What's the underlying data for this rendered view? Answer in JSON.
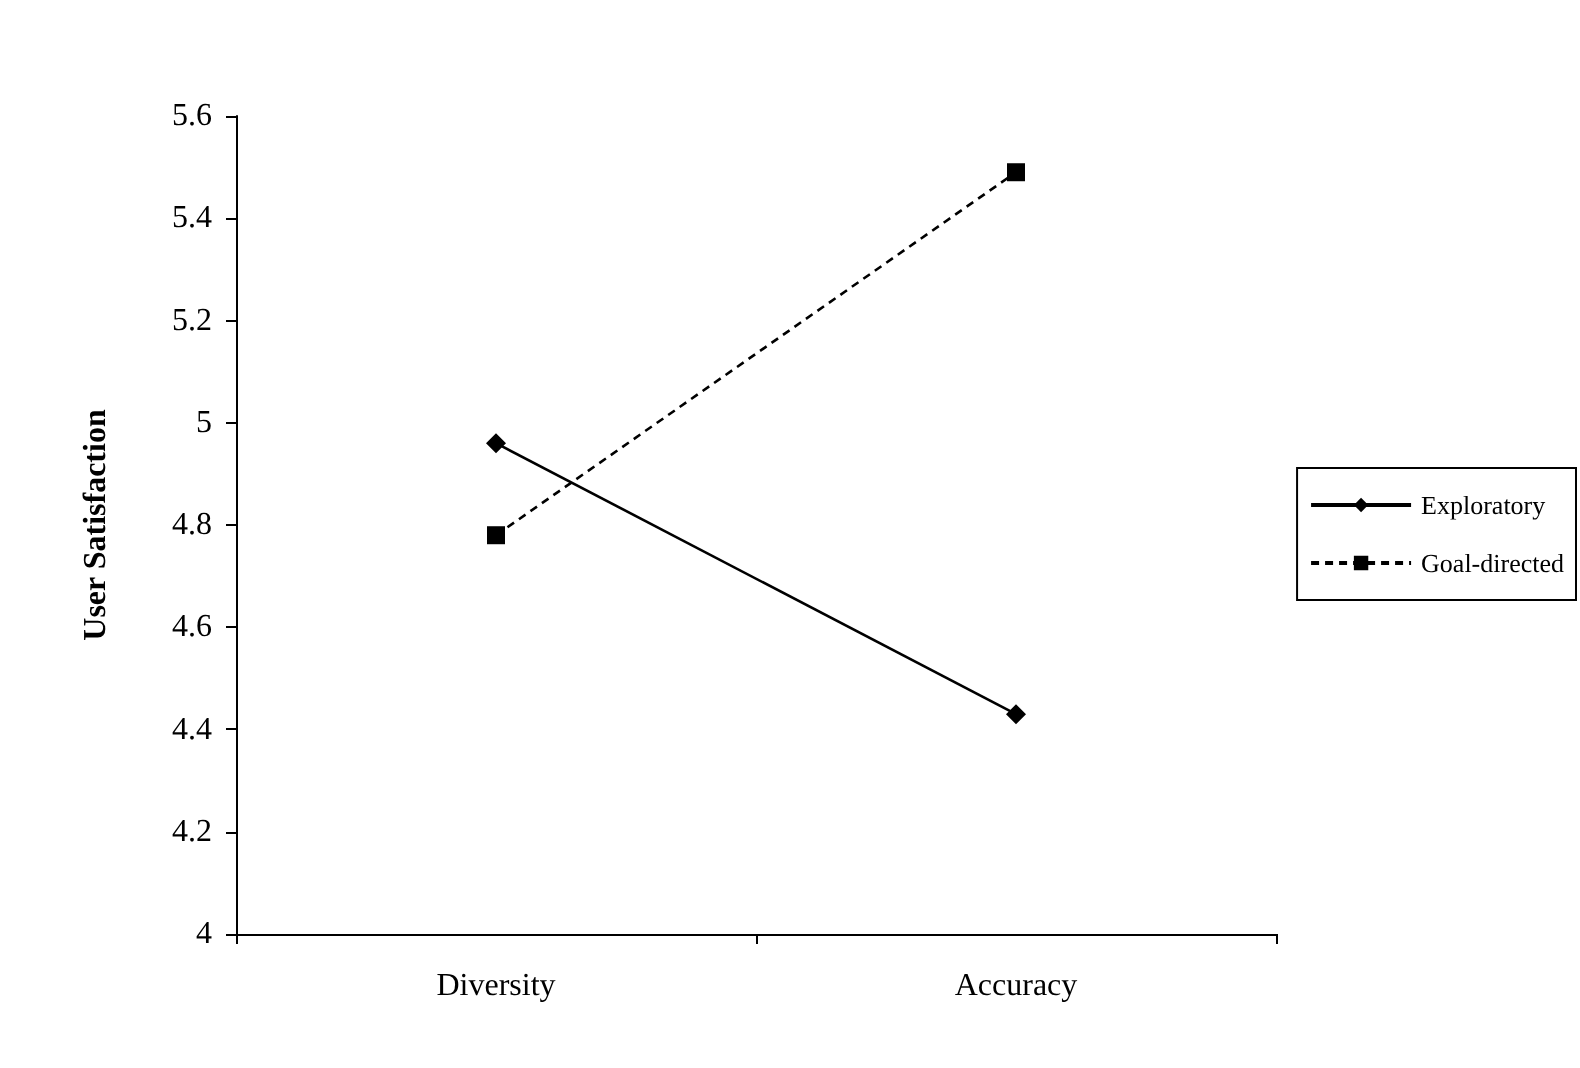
{
  "chart_data": {
    "type": "line",
    "ylabel": "User Satisfaction",
    "categories": [
      "Diversity",
      "Accuracy"
    ],
    "series": [
      {
        "name": "Exploratory",
        "color": "#000000",
        "values": [
          4.96,
          4.43
        ],
        "marker": "diamond",
        "line_style": "solid"
      },
      {
        "name": "Goal-directed",
        "color": "#000000",
        "values": [
          4.78,
          5.49
        ],
        "marker": "square",
        "line_style": "dashed"
      }
    ],
    "ylim": [
      4,
      5.6
    ],
    "yticks": [
      4,
      4.2,
      4.4,
      4.6,
      4.8,
      5,
      5.2,
      5.4,
      5.6
    ],
    "grid": false,
    "legend": "right"
  }
}
